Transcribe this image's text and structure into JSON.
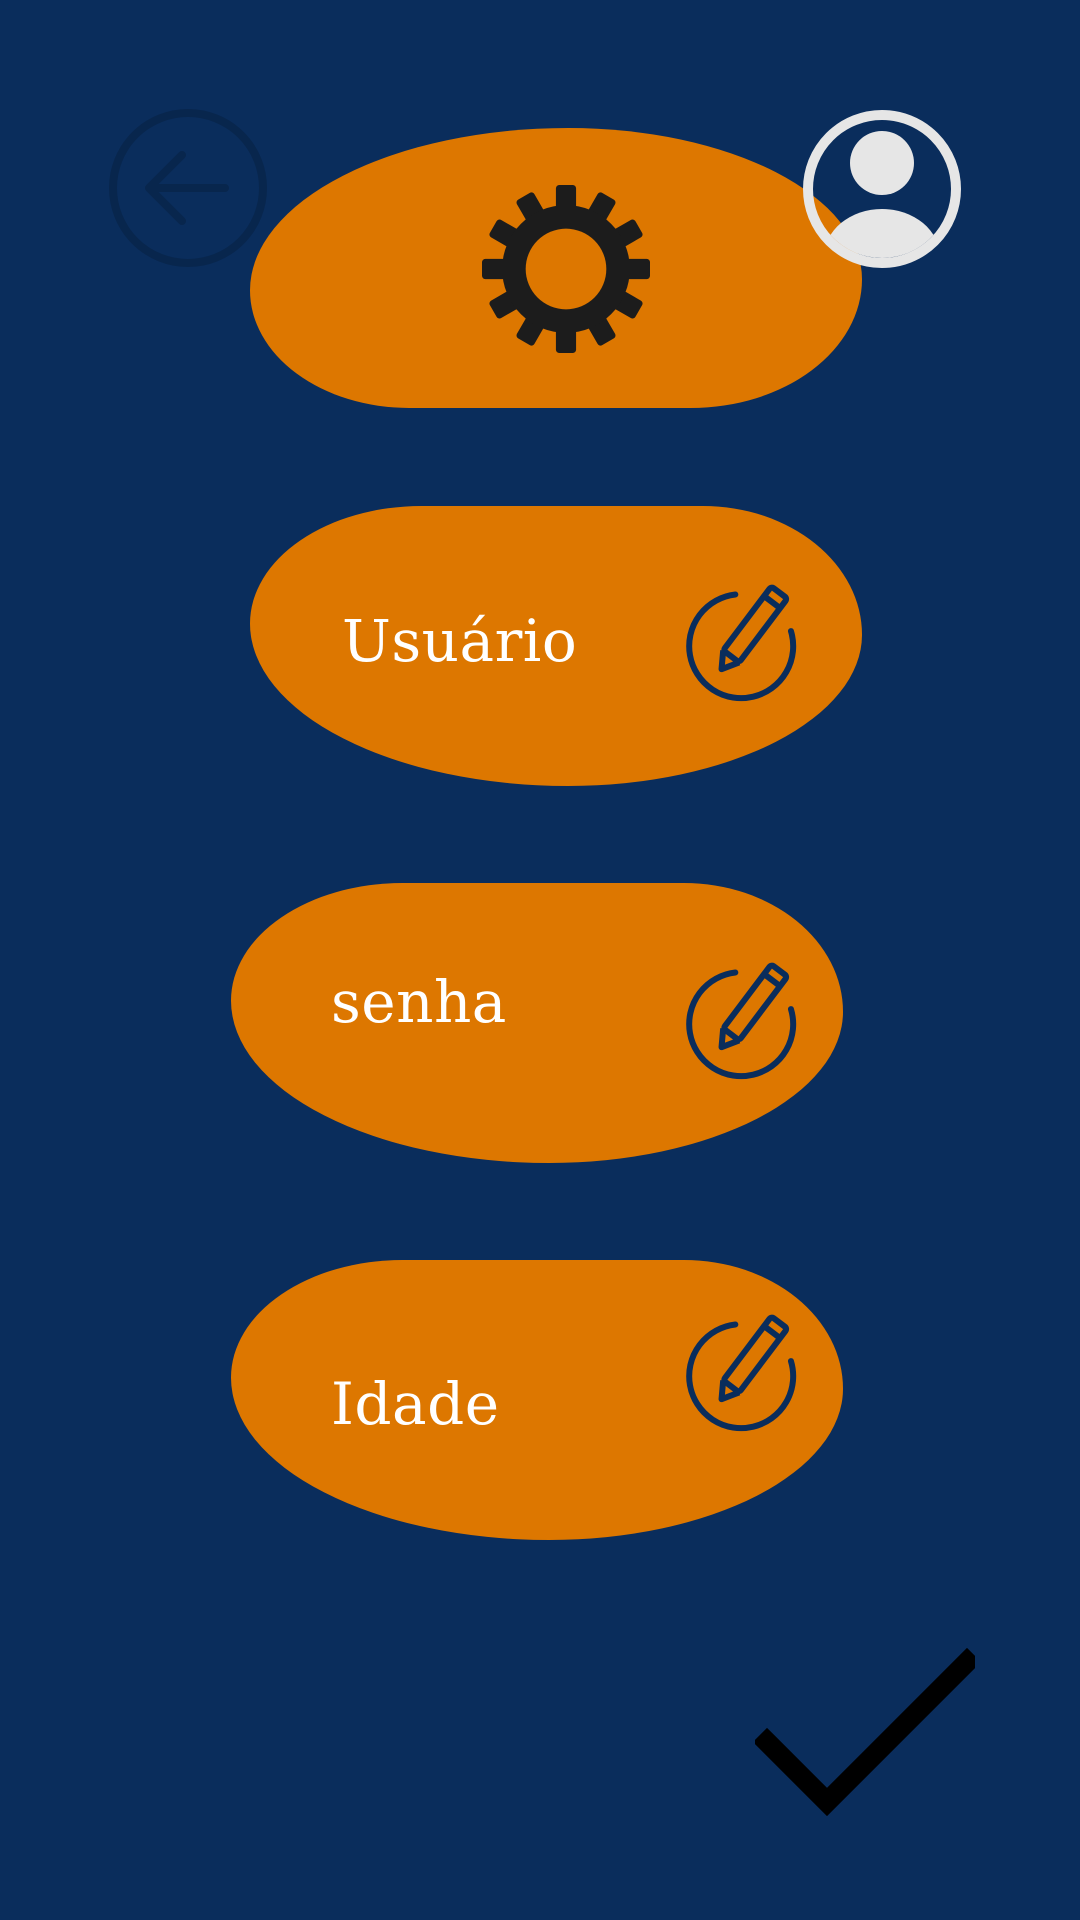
{
  "colors": {
    "background": "#0a2d5c",
    "accent": "#dd7700",
    "label_text": "#ffffff",
    "icon_dark": "#0a2d5c",
    "gear": "#1c1c1c",
    "profile": "#e6e6e6",
    "check": "#000000"
  },
  "header": {
    "back_icon": "arrow-left-circle",
    "settings_icon": "gear",
    "profile_icon": "user-circle"
  },
  "fields": [
    {
      "label": "Usuário",
      "icon": "edit-pencil-circle"
    },
    {
      "label": "senha",
      "icon": "edit-pencil-circle"
    },
    {
      "label": "Idade",
      "icon": "edit-pencil-circle"
    }
  ],
  "footer": {
    "confirm_icon": "checkmark"
  }
}
